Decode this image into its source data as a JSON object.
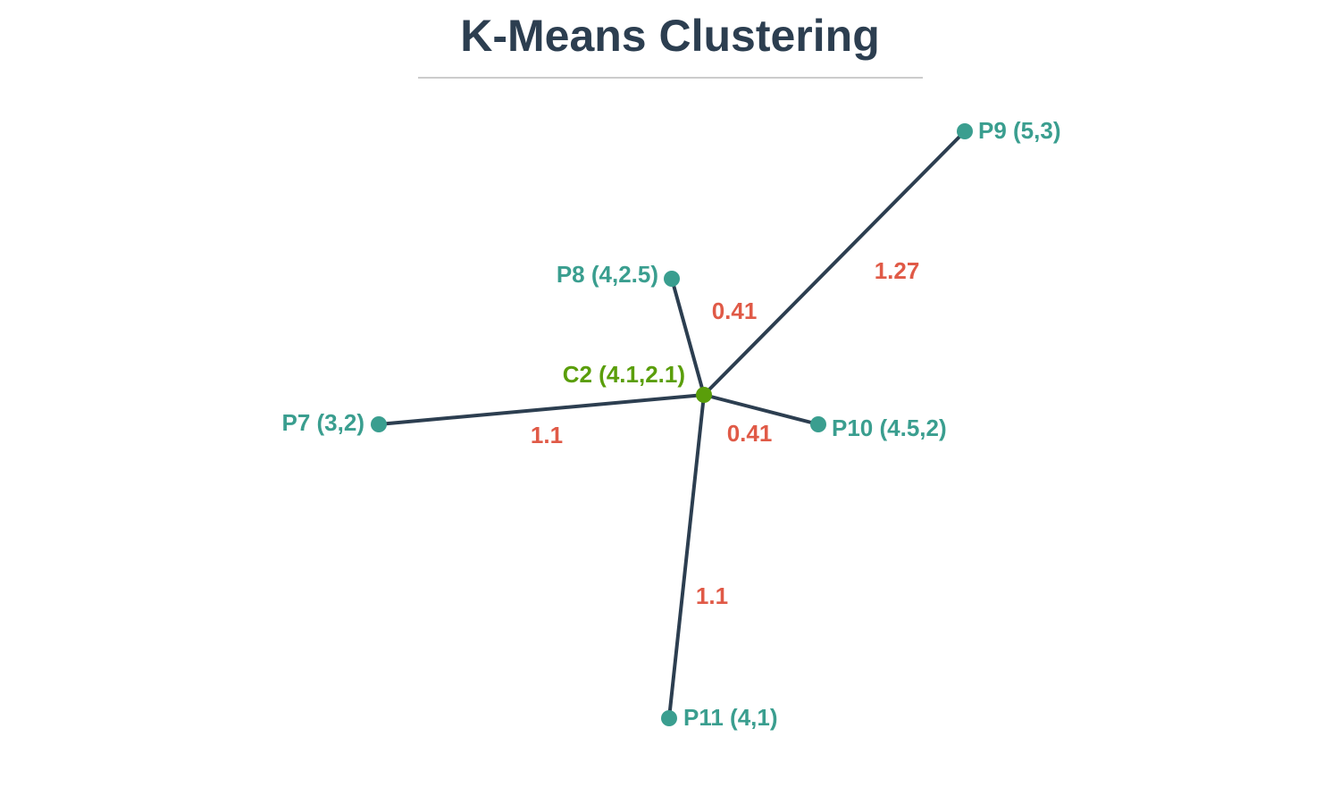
{
  "title": "K-Means Clustering",
  "colors": {
    "title": "#2c3e50",
    "edge": "#2c3e50",
    "point": "#3a9e8f",
    "centroid": "#5a9e0a",
    "distance": "#e05a47"
  },
  "centroid": {
    "id": "C2",
    "label": "C2 (4.1,2.1)"
  },
  "points": [
    {
      "id": "P7",
      "label": "P7 (3,2)"
    },
    {
      "id": "P8",
      "label": "P8 (4,2.5)"
    },
    {
      "id": "P9",
      "label": "P9 (5,3)"
    },
    {
      "id": "P10",
      "label": "P10 (4.5,2)"
    },
    {
      "id": "P11",
      "label": "P11 (4,1)"
    }
  ],
  "edges": [
    {
      "from": "C2",
      "to": "P7",
      "distance": "1.1"
    },
    {
      "from": "C2",
      "to": "P8",
      "distance": "0.41"
    },
    {
      "from": "C2",
      "to": "P9",
      "distance": "1.27"
    },
    {
      "from": "C2",
      "to": "P10",
      "distance": "0.41"
    },
    {
      "from": "C2",
      "to": "P11",
      "distance": "1.1"
    }
  ]
}
